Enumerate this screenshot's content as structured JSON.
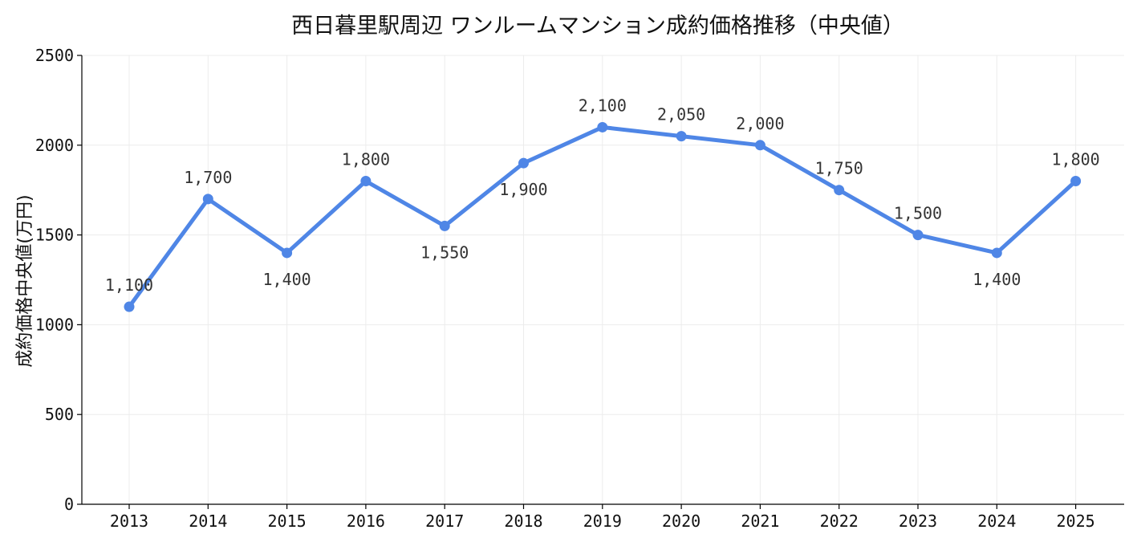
{
  "chart_data": {
    "type": "line",
    "title": "西日暮里駅周辺 ワンルームマンション成約価格推移（中央値）",
    "xlabel": "",
    "ylabel": "成約価格中央値(万円)",
    "x": [
      "2013",
      "2014",
      "2015",
      "2016",
      "2017",
      "2018",
      "2019",
      "2020",
      "2021",
      "2022",
      "2023",
      "2024",
      "2025"
    ],
    "series": [
      {
        "values": [
          1100,
          1700,
          1400,
          1800,
          1550,
          1900,
          2100,
          2050,
          2000,
          1750,
          1500,
          1400,
          1800
        ],
        "labels": [
          "1,100",
          "1,700",
          "1,400",
          "1,800",
          "1,550",
          "1,900",
          "2,100",
          "2,050",
          "2,000",
          "1,750",
          "1,500",
          "1,400",
          "1,800"
        ],
        "color": "#4f86e6"
      }
    ],
    "yticks": [
      "0",
      "500",
      "1000",
      "1500",
      "2000",
      "2500"
    ],
    "ylim": [
      0,
      2500
    ],
    "grid": true,
    "legend": "none"
  }
}
